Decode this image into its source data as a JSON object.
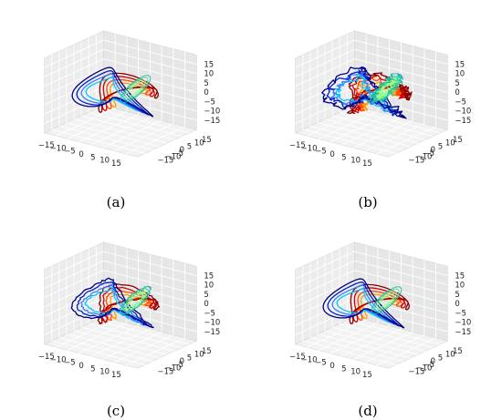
{
  "figure": {
    "panels": [
      {
        "label": "(a)"
      },
      {
        "label": "(b)"
      },
      {
        "label": "(c)"
      },
      {
        "label": "(d)"
      }
    ]
  },
  "chart_data": [
    {
      "type": "line3d",
      "panel": "(a)",
      "title": "",
      "x_ticks": [
        "−15",
        "−10",
        "−5",
        "0",
        "5",
        "10",
        "15"
      ],
      "y_ticks": [
        "15",
        "10",
        "5",
        "0",
        "−5",
        "−10",
        "−15"
      ],
      "z_ticks": [
        "15",
        "10",
        "5",
        "0",
        "−5",
        "−10",
        "−15"
      ],
      "xlim": [
        -20,
        20
      ],
      "ylim": [
        -20,
        20
      ],
      "zlim": [
        -20,
        20
      ],
      "grid": true,
      "noise": 0,
      "series_colors": [
        "#ff9a00",
        "#ff4a00",
        "#d40000",
        "#8a0000",
        "#00c8ff",
        "#3a7dff",
        "#0020d0",
        "#00007a",
        "#7cffb0",
        "#b0ff60",
        "#40e0a0",
        "#20b2aa"
      ]
    },
    {
      "type": "line3d",
      "panel": "(b)",
      "title": "",
      "x_ticks": [
        "−15",
        "−10",
        "−5",
        "0",
        "5",
        "10",
        "15"
      ],
      "y_ticks": [
        "15",
        "10",
        "5",
        "0",
        "−5",
        "−10",
        "−15"
      ],
      "z_ticks": [
        "15",
        "10",
        "5",
        "0",
        "−5",
        "−10",
        "−15"
      ],
      "xlim": [
        -20,
        20
      ],
      "ylim": [
        -20,
        20
      ],
      "zlim": [
        -20,
        20
      ],
      "grid": true,
      "noise": 1,
      "series_colors": [
        "#ff9a00",
        "#ff4a00",
        "#d40000",
        "#8a0000",
        "#00c8ff",
        "#3a7dff",
        "#0020d0",
        "#00007a",
        "#7cffb0",
        "#b0ff60",
        "#40e0a0",
        "#20b2aa"
      ]
    },
    {
      "type": "line3d",
      "panel": "(c)",
      "title": "",
      "x_ticks": [
        "−15",
        "−10",
        "−5",
        "0",
        "5",
        "10",
        "15"
      ],
      "y_ticks": [
        "15",
        "10",
        "5",
        "0",
        "−5",
        "−10",
        "−15"
      ],
      "z_ticks": [
        "15",
        "10",
        "5",
        "0",
        "−5",
        "−10",
        "−15"
      ],
      "xlim": [
        -20,
        20
      ],
      "ylim": [
        -20,
        20
      ],
      "zlim": [
        -20,
        20
      ],
      "grid": true,
      "noise": 0.3,
      "series_colors": [
        "#ff9a00",
        "#ff4a00",
        "#d40000",
        "#8a0000",
        "#00c8ff",
        "#3a7dff",
        "#0020d0",
        "#00007a",
        "#7cffb0",
        "#b0ff60",
        "#40e0a0",
        "#20b2aa"
      ]
    },
    {
      "type": "line3d",
      "panel": "(d)",
      "title": "",
      "x_ticks": [
        "−15",
        "−10",
        "−5",
        "0",
        "5",
        "10",
        "15"
      ],
      "y_ticks": [
        "15",
        "10",
        "5",
        "0",
        "−5",
        "−10",
        "−15"
      ],
      "z_ticks": [
        "15",
        "10",
        "5",
        "0",
        "−5",
        "−10",
        "−15"
      ],
      "xlim": [
        -20,
        20
      ],
      "ylim": [
        -20,
        20
      ],
      "zlim": [
        -20,
        20
      ],
      "grid": true,
      "noise": 0,
      "series_colors": [
        "#ff9a00",
        "#ff4a00",
        "#d40000",
        "#8a0000",
        "#00c8ff",
        "#3a7dff",
        "#0020d0",
        "#00007a",
        "#7cffb0",
        "#b0ff60",
        "#40e0a0",
        "#20b2aa"
      ]
    }
  ]
}
